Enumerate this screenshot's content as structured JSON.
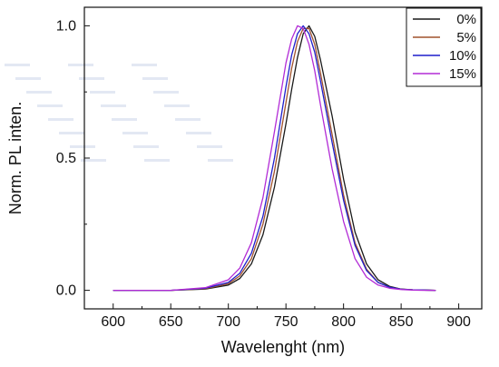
{
  "chart_data": {
    "type": "line",
    "xlabel": "Wavelenght (nm)",
    "ylabel": "Norm. PL inten.",
    "xlim": [
      575,
      920
    ],
    "ylim": [
      -0.07,
      1.07
    ],
    "xticks": [
      600,
      650,
      700,
      750,
      800,
      850,
      900
    ],
    "yticks": [
      0.0,
      0.5,
      1.0
    ],
    "xtick_labels": [
      "600",
      "650",
      "700",
      "750",
      "800",
      "850",
      "900"
    ],
    "ytick_labels": [
      "0.0",
      "0.5",
      "1.0"
    ],
    "grid": false,
    "legend_position": "top-right",
    "series": [
      {
        "name": "0%",
        "color": "#1a1a1a",
        "x": [
          600,
          650,
          680,
          700,
          710,
          720,
          730,
          740,
          750,
          755,
          760,
          765,
          770,
          775,
          780,
          790,
          800,
          810,
          820,
          830,
          840,
          850,
          860,
          870,
          880
        ],
        "y": [
          0.0,
          0.0,
          0.005,
          0.02,
          0.045,
          0.1,
          0.21,
          0.39,
          0.63,
          0.76,
          0.88,
          0.97,
          1.0,
          0.96,
          0.87,
          0.66,
          0.42,
          0.22,
          0.1,
          0.04,
          0.015,
          0.005,
          0.002,
          0.001,
          0.0
        ]
      },
      {
        "name": "5%",
        "color": "#a0522d",
        "x": [
          600,
          650,
          680,
          700,
          710,
          720,
          730,
          740,
          750,
          755,
          760,
          765,
          770,
          775,
          780,
          790,
          800,
          810,
          820,
          830,
          840,
          850,
          860,
          870,
          880
        ],
        "y": [
          0.0,
          0.0,
          0.006,
          0.025,
          0.055,
          0.12,
          0.25,
          0.45,
          0.71,
          0.84,
          0.94,
          0.99,
          0.99,
          0.93,
          0.82,
          0.59,
          0.36,
          0.18,
          0.08,
          0.03,
          0.012,
          0.004,
          0.002,
          0.001,
          0.0
        ]
      },
      {
        "name": "10%",
        "color": "#1f1fcc",
        "x": [
          600,
          650,
          680,
          700,
          710,
          720,
          730,
          740,
          750,
          755,
          760,
          765,
          770,
          775,
          780,
          790,
          800,
          810,
          820,
          830,
          840,
          850,
          860,
          870,
          880
        ],
        "y": [
          0.0,
          0.0,
          0.008,
          0.03,
          0.065,
          0.14,
          0.28,
          0.5,
          0.77,
          0.89,
          0.97,
          1.0,
          0.97,
          0.9,
          0.79,
          0.56,
          0.34,
          0.17,
          0.075,
          0.03,
          0.012,
          0.004,
          0.002,
          0.001,
          0.0
        ]
      },
      {
        "name": "15%",
        "color": "#b22bd6",
        "x": [
          600,
          650,
          680,
          700,
          710,
          720,
          730,
          740,
          750,
          755,
          760,
          765,
          770,
          775,
          780,
          790,
          800,
          810,
          820,
          830,
          840,
          850,
          860,
          870,
          880
        ],
        "y": [
          0.0,
          0.0,
          0.01,
          0.04,
          0.085,
          0.18,
          0.35,
          0.6,
          0.86,
          0.95,
          1.0,
          0.99,
          0.93,
          0.83,
          0.7,
          0.46,
          0.26,
          0.12,
          0.05,
          0.02,
          0.008,
          0.003,
          0.001,
          0.0,
          0.0
        ]
      }
    ]
  }
}
